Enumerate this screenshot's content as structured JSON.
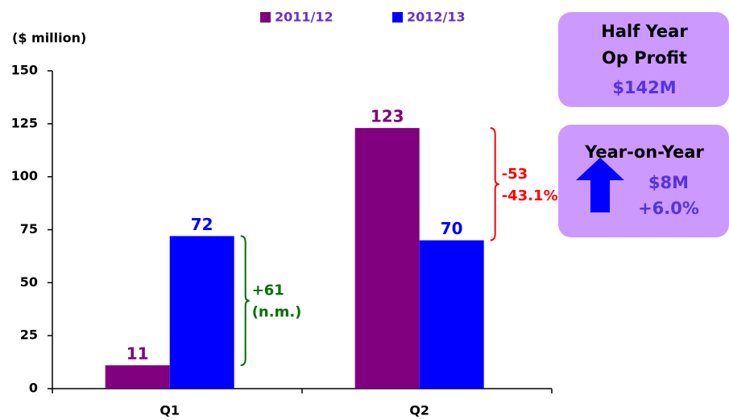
{
  "chart_data": {
    "type": "bar",
    "y_axis_label": "($ million)",
    "categories": [
      "Q1",
      "Q2"
    ],
    "series": [
      {
        "name": "2011/12",
        "color": "#800080",
        "values": [
          11,
          123
        ]
      },
      {
        "name": "2012/13",
        "color": "#0000ff",
        "values": [
          72,
          70
        ]
      }
    ],
    "ylim": [
      0,
      150
    ],
    "yticks": [
      0,
      25,
      50,
      75,
      100,
      125,
      150
    ],
    "legend": "top",
    "annotations": [
      {
        "category": "Q1",
        "lines": [
          "+61",
          "(n.m.)"
        ],
        "color": "#007000"
      },
      {
        "category": "Q2",
        "lines": [
          "-53",
          "-43.1%"
        ],
        "color": "#ff0000"
      }
    ],
    "panels": [
      {
        "lines": [
          "Half Year",
          "Op Profit"
        ],
        "highlight": [
          "$142M"
        ]
      },
      {
        "lines": [
          "Year-on-Year"
        ],
        "highlight": [
          "$8M",
          "+6.0%"
        ]
      }
    ]
  }
}
